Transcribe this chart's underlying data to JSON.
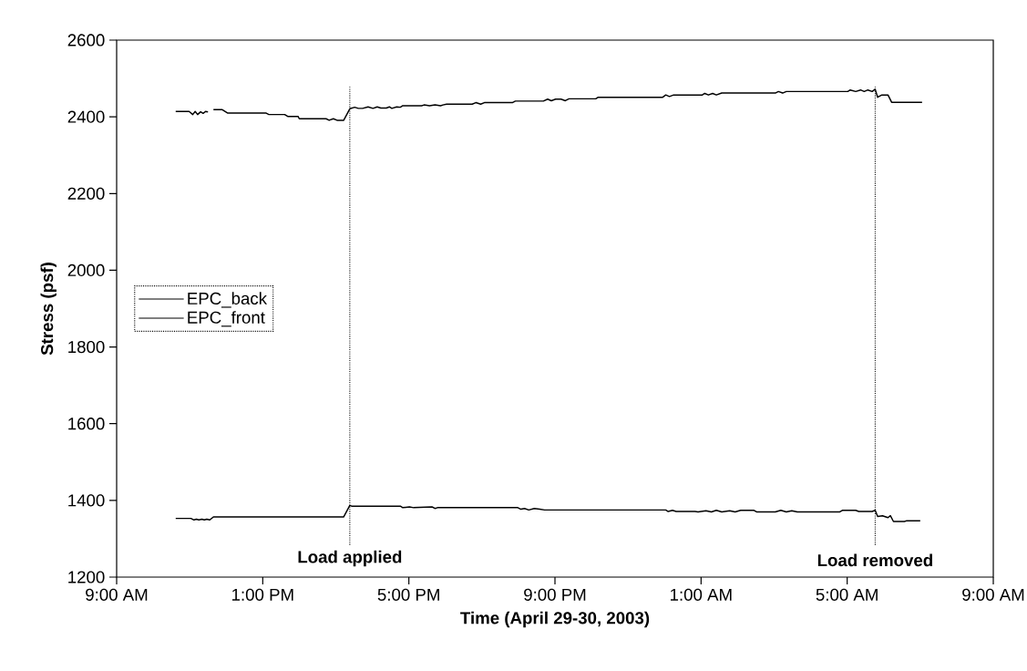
{
  "chart_data": {
    "type": "line",
    "xlabel": "Time (April 29-30, 2003)",
    "ylabel": "Stress (psf)",
    "xlim": [
      "2003-04-29T09:00",
      "2003-04-30T09:00"
    ],
    "ylim": [
      1200,
      2600
    ],
    "xticks": [
      {
        "value": "2003-04-29T09:00",
        "label": "9:00 AM"
      },
      {
        "value": "2003-04-29T13:00",
        "label": "1:00 PM"
      },
      {
        "value": "2003-04-29T17:00",
        "label": "5:00 PM"
      },
      {
        "value": "2003-04-29T21:00",
        "label": "9:00 PM"
      },
      {
        "value": "2003-04-30T01:00",
        "label": "1:00 AM"
      },
      {
        "value": "2003-04-30T05:00",
        "label": "5:00 AM"
      },
      {
        "value": "2003-04-30T09:00",
        "label": "9:00 AM"
      }
    ],
    "yticks": [
      1200,
      1400,
      1600,
      1800,
      2000,
      2200,
      2400,
      2600
    ],
    "grid": false,
    "legend": "left",
    "marker": "none",
    "line_style": "solid",
    "series": [
      {
        "name": "EPC_back",
        "color": "#000000",
        "x": [
          "2003-04-29T10:37",
          "2003-04-29T10:59",
          "2003-04-29T11:05",
          "2003-04-29T11:09",
          "2003-04-29T11:13",
          "2003-04-29T11:18",
          "2003-04-29T11:22",
          "2003-04-29T11:26",
          "2003-04-29T11:30",
          "2003-04-29T11:34",
          "2003-04-29T11:39",
          "2003-04-29T11:53",
          "2003-04-29T12:02",
          "2003-04-29T13:05",
          "2003-04-29T13:10",
          "2003-04-29T13:36",
          "2003-04-29T13:41",
          "2003-04-29T13:58",
          "2003-04-29T14:00",
          "2003-04-29T14:44",
          "2003-04-29T14:49",
          "2003-04-29T14:56",
          "2003-04-29T15:02",
          "2003-04-29T15:13",
          "2003-04-29T15:23",
          "2003-04-29T15:31",
          "2003-04-29T15:37",
          "2003-04-29T15:44",
          "2003-04-29T15:53",
          "2003-04-29T16:01",
          "2003-04-29T16:08",
          "2003-04-29T16:14",
          "2003-04-29T16:23",
          "2003-04-29T16:28",
          "2003-04-29T16:32",
          "2003-04-29T16:40",
          "2003-04-29T16:46",
          "2003-04-29T16:50",
          "2003-04-29T17:21",
          "2003-04-29T17:25",
          "2003-04-29T17:34",
          "2003-04-29T17:43",
          "2003-04-29T17:52",
          "2003-04-29T17:56",
          "2003-04-29T18:02",
          "2003-04-29T18:44",
          "2003-04-29T18:50",
          "2003-04-29T18:58",
          "2003-04-29T19:04",
          "2003-04-29T19:50",
          "2003-04-29T19:55",
          "2003-04-29T20:41",
          "2003-04-29T20:48",
          "2003-04-29T20:54",
          "2003-04-29T21:01",
          "2003-04-29T21:10",
          "2003-04-29T21:17",
          "2003-04-29T21:23",
          "2003-04-29T22:07",
          "2003-04-29T22:11",
          "2003-04-29T23:57",
          "2003-04-30T00:02",
          "2003-04-30T00:08",
          "2003-04-30T00:15",
          "2003-04-30T01:02",
          "2003-04-30T01:06",
          "2003-04-30T01:12",
          "2003-04-30T01:19",
          "2003-04-30T01:25",
          "2003-04-30T01:34",
          "2003-04-30T03:02",
          "2003-04-30T03:07",
          "2003-04-30T03:14",
          "2003-04-30T03:20",
          "2003-04-30T05:01",
          "2003-04-30T05:05",
          "2003-04-30T05:14",
          "2003-04-30T05:22",
          "2003-04-30T05:28",
          "2003-04-30T05:34",
          "2003-04-30T05:41",
          "2003-04-30T05:46",
          "2003-04-30T05:50",
          "2003-04-30T05:57",
          "2003-04-30T06:07",
          "2003-04-30T06:13",
          "2003-04-30T07:03"
        ],
        "values": [
          2414,
          2414,
          2406,
          2414,
          2406,
          2413,
          2409,
          2414,
          2413,
          null,
          2419,
          2419,
          2410,
          2410,
          2406,
          2406,
          2401,
          2401,
          2395,
          2395,
          2391,
          2395,
          2391,
          2391,
          2421,
          2425,
          2422,
          2422,
          2426,
          2422,
          2426,
          2423,
          2423,
          2426,
          2422,
          2426,
          2425,
          2429,
          2429,
          2431,
          2429,
          2431,
          2429,
          2431,
          2433,
          2433,
          2437,
          2433,
          2437,
          2437,
          2441,
          2441,
          2446,
          2442,
          2446,
          2446,
          2442,
          2447,
          2447,
          2451,
          2451,
          2457,
          2453,
          2457,
          2457,
          2461,
          2457,
          2461,
          2457,
          2462,
          2462,
          2466,
          2462,
          2466,
          2466,
          2470,
          2466,
          2470,
          2466,
          2470,
          2466,
          2472,
          2451,
          2457,
          2457,
          2438,
          2438
        ]
      },
      {
        "name": "EPC_front",
        "color": "#000000",
        "x": [
          "2003-04-29T10:37",
          "2003-04-29T11:02",
          "2003-04-29T11:07",
          "2003-04-29T11:11",
          "2003-04-29T11:15",
          "2003-04-29T11:20",
          "2003-04-29T11:24",
          "2003-04-29T11:28",
          "2003-04-29T11:33",
          "2003-04-29T11:39",
          "2003-04-29T15:13",
          "2003-04-29T15:23",
          "2003-04-29T15:26",
          "2003-04-29T16:46",
          "2003-04-29T16:50",
          "2003-04-29T16:55",
          "2003-04-29T17:01",
          "2003-04-29T17:08",
          "2003-04-29T17:38",
          "2003-04-29T17:43",
          "2003-04-29T17:47",
          "2003-04-29T19:59",
          "2003-04-29T20:04",
          "2003-04-29T20:10",
          "2003-04-29T20:17",
          "2003-04-29T20:26",
          "2003-04-29T20:35",
          "2003-04-29T20:43",
          "2003-04-30T00:02",
          "2003-04-30T00:06",
          "2003-04-30T00:13",
          "2003-04-30T00:19",
          "2003-04-30T00:50",
          "2003-04-30T00:55",
          "2003-04-30T01:08",
          "2003-04-30T01:17",
          "2003-04-30T01:25",
          "2003-04-30T01:34",
          "2003-04-30T01:47",
          "2003-04-30T01:56",
          "2003-04-30T02:05",
          "2003-04-30T02:27",
          "2003-04-30T02:31",
          "2003-04-30T03:02",
          "2003-04-30T03:11",
          "2003-04-30T03:20",
          "2003-04-30T03:29",
          "2003-04-30T03:38",
          "2003-04-30T04:48",
          "2003-04-30T04:52",
          "2003-04-30T05:14",
          "2003-04-30T05:19",
          "2003-04-30T05:41",
          "2003-04-30T05:46",
          "2003-04-30T05:50",
          "2003-04-30T05:58",
          "2003-04-30T06:07",
          "2003-04-30T06:11",
          "2003-04-30T06:16",
          "2003-04-30T06:34",
          "2003-04-30T06:38",
          "2003-04-30T07:00"
        ],
        "values": [
          1353,
          1353,
          1349,
          1351,
          1349,
          1351,
          1349,
          1351,
          1349,
          1357,
          1357,
          1387,
          1385,
          1385,
          1381,
          1382,
          1383,
          1381,
          1383,
          1379,
          1381,
          1381,
          1377,
          1379,
          1375,
          1379,
          1377,
          1375,
          1375,
          1371,
          1374,
          1371,
          1371,
          1370,
          1373,
          1370,
          1374,
          1370,
          1373,
          1370,
          1374,
          1374,
          1370,
          1370,
          1374,
          1370,
          1373,
          1370,
          1370,
          1374,
          1374,
          1371,
          1371,
          1374,
          1358,
          1360,
          1355,
          1360,
          1345,
          1345,
          1347,
          1347
        ]
      }
    ],
    "ref_lines": [
      {
        "axis": "x",
        "value": "2003-04-29T15:23",
        "label": "Load applied",
        "color": "#000000",
        "line_style": "dotted"
      },
      {
        "axis": "x",
        "value": "2003-04-30T05:46",
        "label": "Load removed",
        "color": "#000000",
        "line_style": "dotted"
      }
    ]
  }
}
